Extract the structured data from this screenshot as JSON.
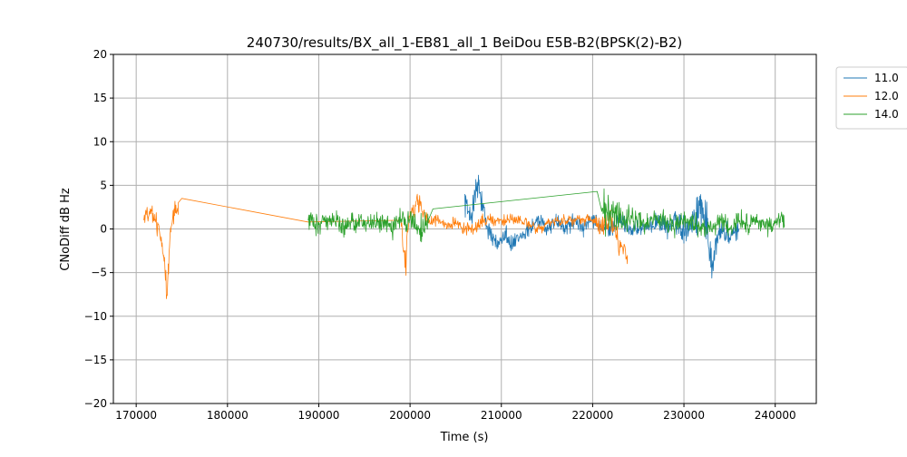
{
  "chart_data": {
    "type": "line",
    "title": "240730/results/BX_all_1-EB81_all_1 BeiDou E5B-B2(BPSK(2)-B2)",
    "xlabel": "Time (s)",
    "ylabel": "CNoDiff dB Hz",
    "xlim": [
      167500,
      244500
    ],
    "ylim": [
      -20,
      20
    ],
    "xticks": [
      170000,
      180000,
      190000,
      200000,
      210000,
      220000,
      230000,
      240000
    ],
    "xtick_labels": [
      "170000",
      "180000",
      "190000",
      "200000",
      "210000",
      "220000",
      "230000",
      "240000"
    ],
    "yticks": [
      -20,
      -15,
      -10,
      -5,
      0,
      5,
      10,
      15,
      20
    ],
    "ytick_labels": [
      "−20",
      "−15",
      "−10",
      "−5",
      "0",
      "5",
      "10",
      "15",
      "20"
    ],
    "grid": true,
    "legend_position": "outside-top-right",
    "series": [
      {
        "name": "11.0",
        "color": "#1f77b4",
        "x": [
          206000,
          206500,
          207000,
          207500,
          208000,
          208500,
          209000,
          209500,
          210000,
          210500,
          211000,
          212000,
          213000,
          214000,
          215000,
          216000,
          217000,
          218000,
          219000,
          220000,
          221000,
          222000,
          223000,
          224000,
          225000,
          226000,
          227000,
          228000,
          229000,
          230000,
          231000,
          232000,
          233000,
          234000,
          235000,
          236000
        ],
        "y": [
          4,
          1,
          3,
          5,
          2,
          0,
          -1,
          -2,
          -1,
          0,
          -2,
          -1,
          0,
          1,
          0,
          1,
          0,
          1,
          0,
          1,
          0,
          0,
          1,
          0,
          0,
          0,
          1,
          0,
          1,
          0,
          1,
          3,
          -3,
          0,
          -1,
          0
        ],
        "spread": [
          2.5,
          2,
          2.5,
          3,
          2,
          2,
          1.5,
          1.5,
          1.5,
          1.5,
          1.5,
          1.2,
          1.2,
          1.2,
          1.2,
          1.2,
          1.2,
          1.2,
          1.2,
          1.2,
          1.2,
          1.2,
          1.2,
          1.2,
          1.2,
          1.2,
          1.2,
          1.5,
          1.5,
          2,
          2.5,
          3.5,
          4,
          2,
          1.5,
          1.2
        ]
      },
      {
        "name": "12.0",
        "color": "#ff7f0e",
        "x": [
          170800,
          171500,
          172000,
          172500,
          173000,
          173300,
          173500,
          173800,
          174200,
          174600,
          175000,
          188800,
          199000,
          199500,
          200000,
          201000,
          202000,
          203000,
          204000,
          205000,
          206000,
          207000,
          208000,
          210000,
          212000,
          214000,
          216000,
          218000,
          220000,
          221000,
          222000,
          223000,
          223800
        ],
        "y": [
          1,
          2,
          1,
          0,
          -3,
          -8,
          -4,
          0,
          2,
          3,
          3.5,
          0.8,
          1,
          -4,
          2,
          3,
          1,
          1,
          0,
          1,
          0,
          0,
          1,
          1,
          1,
          0,
          1,
          1,
          1,
          0,
          1,
          -2,
          -3
        ],
        "spread": [
          1.5,
          1.5,
          1.5,
          1.5,
          2,
          3,
          2.5,
          1.5,
          1.5,
          1.5,
          0.2,
          0.2,
          1.5,
          2,
          2,
          1.5,
          1,
          1,
          0.8,
          0.8,
          0.8,
          0.8,
          0.8,
          0.8,
          0.8,
          0.8,
          0.8,
          0.8,
          0.8,
          1.5,
          1.5,
          1.5,
          1.5
        ]
      },
      {
        "name": "14.0",
        "color": "#2ca02c",
        "x": [
          188800,
          190000,
          191000,
          192000,
          193000,
          194000,
          195000,
          196000,
          197000,
          198000,
          199000,
          200000,
          201000,
          202000,
          202500,
          220500,
          221000,
          222000,
          223000,
          224000,
          225000,
          226000,
          227000,
          228000,
          229000,
          230000,
          231000,
          232000,
          233000,
          234000,
          235000,
          236000,
          237000,
          238000,
          239000,
          240000,
          241000
        ],
        "y": [
          1,
          0.5,
          1,
          1,
          0,
          1,
          1,
          0.5,
          1,
          0,
          1,
          1,
          0,
          1,
          2.3,
          4.3,
          2,
          2,
          1,
          1,
          1,
          0.5,
          1,
          1,
          0,
          1,
          1,
          0,
          0,
          1,
          0,
          1,
          0.5,
          1,
          0,
          1,
          0.5
        ],
        "spread": [
          1.5,
          1.5,
          1.5,
          1.5,
          1.5,
          1.8,
          1.5,
          1.5,
          1.5,
          1.5,
          1.8,
          2,
          2,
          2,
          0.2,
          0.2,
          3,
          3,
          2,
          2,
          1.5,
          1.5,
          1.5,
          1.5,
          1.5,
          1.5,
          1.5,
          1.5,
          1.5,
          1.5,
          1.5,
          1.5,
          1.5,
          1.5,
          1.5,
          1.5,
          1.5
        ]
      }
    ]
  }
}
